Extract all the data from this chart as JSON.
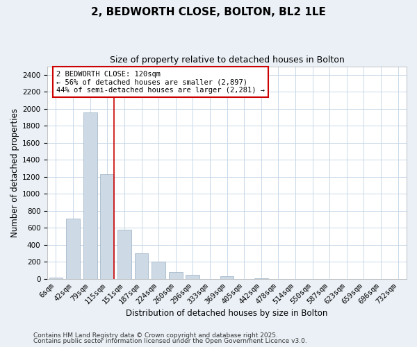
{
  "title": "2, BEDWORTH CLOSE, BOLTON, BL2 1LE",
  "subtitle": "Size of property relative to detached houses in Bolton",
  "xlabel": "Distribution of detached houses by size in Bolton",
  "ylabel": "Number of detached properties",
  "bar_labels": [
    "6sqm",
    "42sqm",
    "79sqm",
    "115sqm",
    "151sqm",
    "187sqm",
    "224sqm",
    "260sqm",
    "296sqm",
    "333sqm",
    "369sqm",
    "405sqm",
    "442sqm",
    "478sqm",
    "514sqm",
    "550sqm",
    "587sqm",
    "623sqm",
    "659sqm",
    "696sqm",
    "732sqm"
  ],
  "bar_values": [
    15,
    710,
    1960,
    1230,
    575,
    300,
    200,
    80,
    45,
    0,
    35,
    0,
    10,
    0,
    0,
    0,
    0,
    0,
    0,
    0,
    0
  ],
  "bar_color": "#cdd9e5",
  "bar_edgecolor": "#9ab0c4",
  "vline_color": "#cc0000",
  "annotation_box_text": "2 BEDWORTH CLOSE: 120sqm\n← 56% of detached houses are smaller (2,897)\n44% of semi-detached houses are larger (2,281) →",
  "annotation_box_color": "#cc0000",
  "ylim": [
    0,
    2500
  ],
  "yticks": [
    0,
    200,
    400,
    600,
    800,
    1000,
    1200,
    1400,
    1600,
    1800,
    2000,
    2200,
    2400
  ],
  "footer1": "Contains HM Land Registry data © Crown copyright and database right 2025.",
  "footer2": "Contains public sector information licensed under the Open Government Licence v3.0.",
  "bg_color": "#eaf0f6",
  "plot_bg_color": "#ffffff",
  "grid_color": "#c8d8e8",
  "title_fontsize": 11,
  "subtitle_fontsize": 9,
  "axis_label_fontsize": 8.5,
  "tick_fontsize": 7.5,
  "annotation_fontsize": 7.5,
  "footer_fontsize": 6.5
}
